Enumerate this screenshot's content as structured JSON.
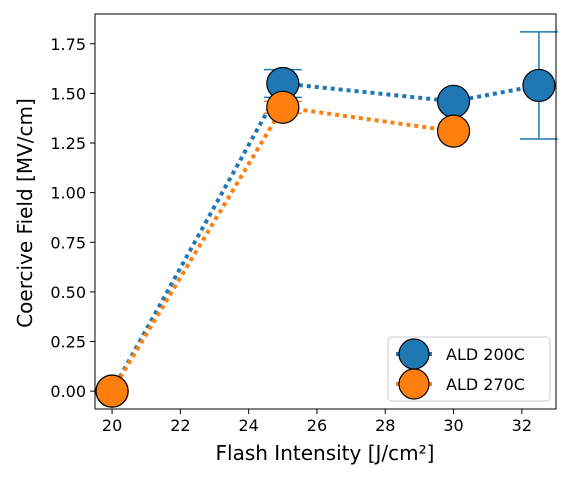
{
  "chart_data": {
    "type": "line",
    "title": "",
    "xlabel": "Flash Intensity [J/cm²]",
    "ylabel": "Coercive Field [MV/cm]",
    "xlim": [
      19.5,
      33.0
    ],
    "ylim": [
      -0.09,
      1.9
    ],
    "xticks": [
      "20",
      "22",
      "24",
      "26",
      "28",
      "30",
      "32"
    ],
    "yticks": [
      "0.00",
      "0.25",
      "0.50",
      "0.75",
      "1.00",
      "1.25",
      "1.50",
      "1.75"
    ],
    "grid": false,
    "legend_position": "lower-right",
    "series": [
      {
        "name": "ALD 200C",
        "color": "#1f77b4",
        "line_style": "dotted",
        "points": [
          {
            "x": 20,
            "y": 0.0,
            "err": 0.0
          },
          {
            "x": 25,
            "y": 1.55,
            "err": 0.07
          },
          {
            "x": 30,
            "y": 1.46,
            "err": 0.0
          },
          {
            "x": 32.5,
            "y": 1.54,
            "err": 0.27
          }
        ]
      },
      {
        "name": "ALD 270C",
        "color": "#ff7f0e",
        "line_style": "dotted",
        "points": [
          {
            "x": 20,
            "y": 0.0,
            "err": 0.0
          },
          {
            "x": 25,
            "y": 1.43,
            "err": 0.03
          },
          {
            "x": 30,
            "y": 1.31,
            "err": 0.0
          }
        ]
      }
    ]
  }
}
